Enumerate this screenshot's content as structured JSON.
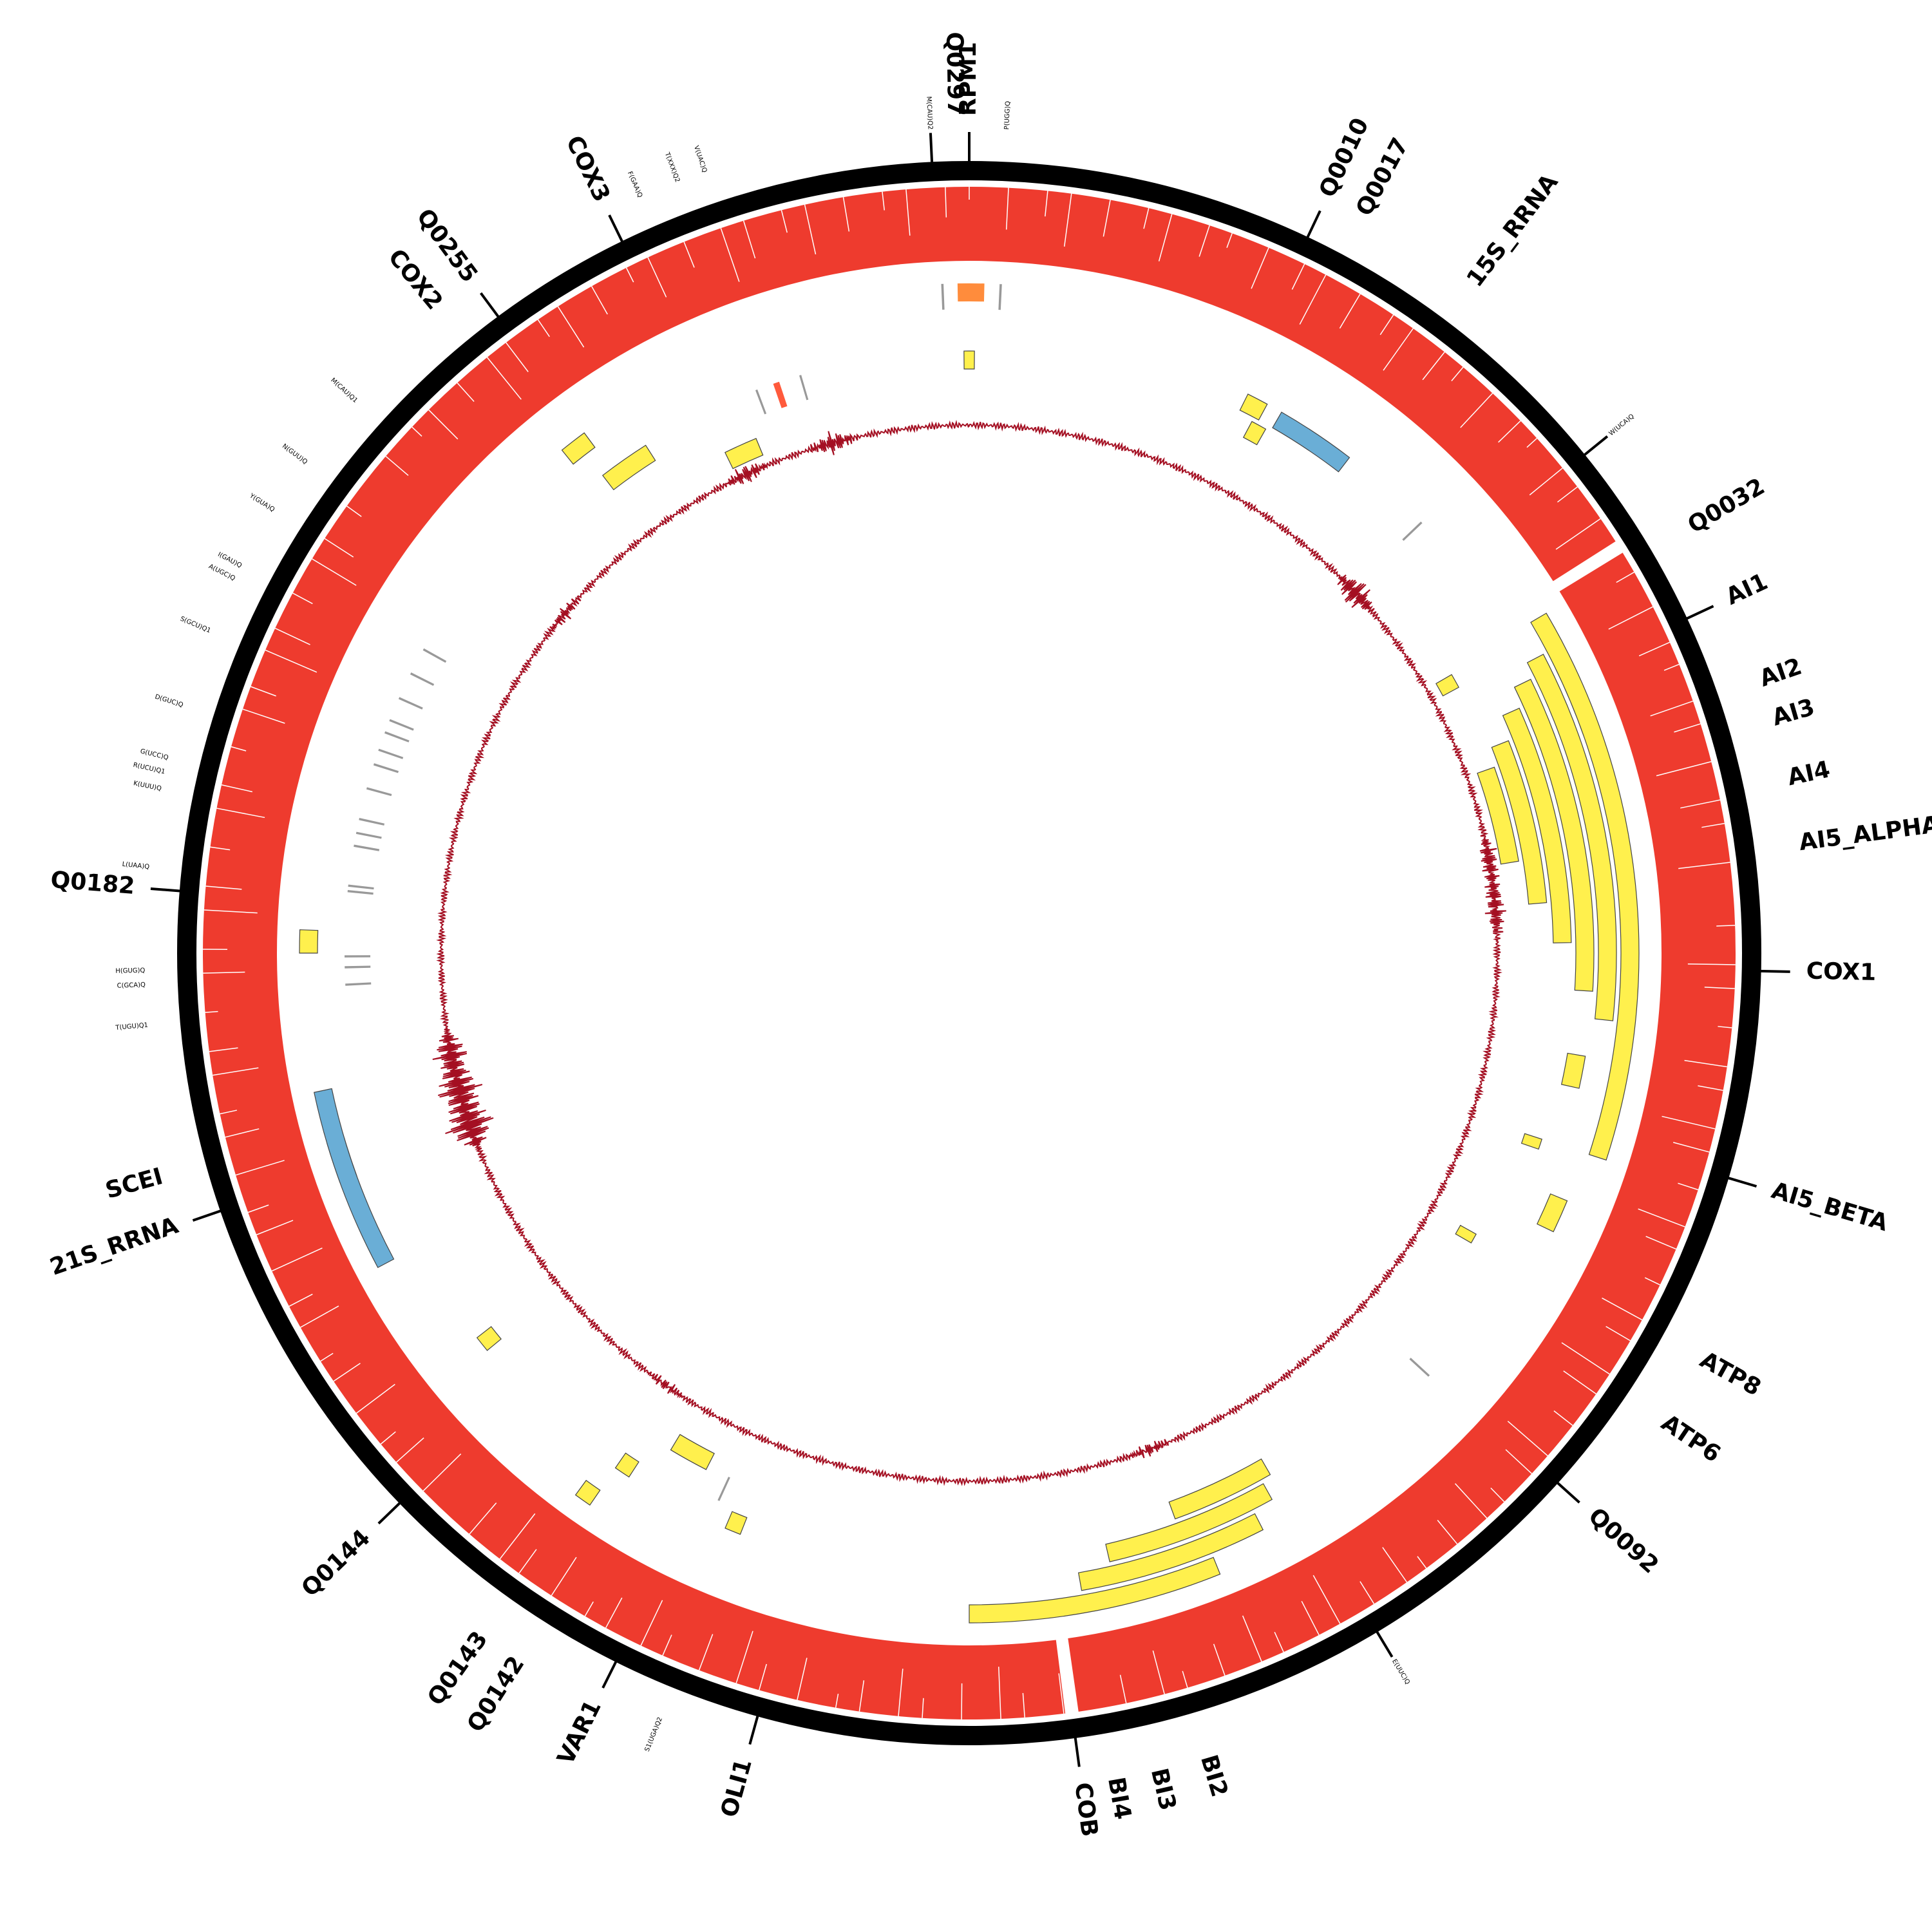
{
  "chart_data": {
    "type": "circular-genome-map",
    "rings": [
      "ideogram",
      "coverage",
      "feature-tracks",
      "gc-skew"
    ],
    "colors": {
      "ideogram": "#000000",
      "coverage": "#ee3b2e",
      "cds": "#fff04d",
      "rrna": "#6aaed6",
      "trna": "#999999",
      "orange": "#ff8c3c",
      "coral": "#ff5a3c",
      "skew": "#a40f22",
      "outline": "#444444"
    },
    "gene_labels": [
      {
        "name": "Q0297",
        "angle": -1.0,
        "size": "big"
      },
      {
        "name": "RPM1",
        "angle": 0.0,
        "size": "big"
      },
      {
        "name": "Q0010",
        "angle": 25.3,
        "size": "big"
      },
      {
        "name": "Q0017",
        "angle": 28.1,
        "size": "big"
      },
      {
        "name": "15S_RRNA",
        "angle": 37.0,
        "size": "big"
      },
      {
        "name": "Q0032",
        "angle": 59.5,
        "size": "big"
      },
      {
        "name": "AI1",
        "angle": 65.0,
        "size": "big"
      },
      {
        "name": "AI2",
        "angle": 71.0,
        "size": "big"
      },
      {
        "name": "AI3",
        "angle": 73.8,
        "size": "big"
      },
      {
        "name": "AI4",
        "angle": 78.0,
        "size": "big"
      },
      {
        "name": "AI5_ALPHA",
        "angle": 82.5,
        "size": "big"
      },
      {
        "name": "COX1",
        "angle": 91.3,
        "size": "big"
      },
      {
        "name": "AI5_BETA",
        "angle": 106.5,
        "size": "big"
      },
      {
        "name": "ATP8",
        "angle": 119.0,
        "size": "big"
      },
      {
        "name": "ATP6",
        "angle": 124.0,
        "size": "big"
      },
      {
        "name": "Q0092",
        "angle": 132.0,
        "size": "big"
      },
      {
        "name": "BI2",
        "angle": 163.5,
        "size": "big"
      },
      {
        "name": "BI3",
        "angle": 167.0,
        "size": "big"
      },
      {
        "name": "BI4",
        "angle": 170.0,
        "size": "big"
      },
      {
        "name": "COB",
        "angle": 172.3,
        "size": "big"
      },
      {
        "name": "OLI1",
        "angle": 195.5,
        "size": "big"
      },
      {
        "name": "VAR1",
        "angle": 206.5,
        "size": "big"
      },
      {
        "name": "Q0142",
        "angle": 212.5,
        "size": "big"
      },
      {
        "name": "Q0143",
        "angle": 215.5,
        "size": "big"
      },
      {
        "name": "Q0144",
        "angle": 226.0,
        "size": "big"
      },
      {
        "name": "21S_RRNA",
        "angle": 251.0,
        "size": "big"
      },
      {
        "name": "SCEI",
        "angle": 254.5,
        "size": "big"
      },
      {
        "name": "Q0182",
        "angle": 274.5,
        "size": "big"
      },
      {
        "name": "COX2",
        "angle": 320.5,
        "size": "big"
      },
      {
        "name": "Q0255",
        "angle": 323.5,
        "size": "big"
      },
      {
        "name": "COX3",
        "angle": 334.0,
        "size": "big"
      },
      {
        "name": "M(CAU)Q2",
        "angle": -2.7,
        "size": "small"
      },
      {
        "name": "P(UGG)Q",
        "angle": 2.6,
        "size": "small"
      },
      {
        "name": "W(UCA)Q",
        "angle": 51.0,
        "size": "small"
      },
      {
        "name": "E(UUC)Q",
        "angle": 149.0,
        "size": "small"
      },
      {
        "name": "S1(UGA)Q2",
        "angle": 202.0,
        "size": "small"
      },
      {
        "name": "T(UGU)Q1",
        "angle": 265.0,
        "size": "small"
      },
      {
        "name": "C(GCA)Q",
        "angle": 267.8,
        "size": "small"
      },
      {
        "name": "H(GUG)Q",
        "angle": 268.8,
        "size": "small"
      },
      {
        "name": "L(UAA)Q",
        "angle": 276.0,
        "size": "small"
      },
      {
        "name": "K(UUU)Q",
        "angle": 281.5,
        "size": "small"
      },
      {
        "name": "R(UCU)Q1",
        "angle": 282.7,
        "size": "small"
      },
      {
        "name": "G(UCC)Q",
        "angle": 283.7,
        "size": "small"
      },
      {
        "name": "D(GUC)Q",
        "angle": 287.5,
        "size": "small"
      },
      {
        "name": "S(GCU)Q1",
        "angle": 293.0,
        "size": "small"
      },
      {
        "name": "A(UGC)Q",
        "angle": 297.0,
        "size": "small"
      },
      {
        "name": "I(GAU)Q",
        "angle": 298.0,
        "size": "small"
      },
      {
        "name": "Y(GUA)Q",
        "angle": 302.5,
        "size": "small"
      },
      {
        "name": "N(GUU)Q",
        "angle": 306.5,
        "size": "small"
      },
      {
        "name": "M(CAU)Q1",
        "angle": 312.0,
        "size": "small"
      },
      {
        "name": "F(GAA)Q",
        "angle": 336.5,
        "size": "small"
      },
      {
        "name": "T(XXX)Q2",
        "angle": 339.3,
        "size": "small"
      },
      {
        "name": "V(UAC)Q",
        "angle": 341.3,
        "size": "small"
      }
    ],
    "ideogram_ticks": [
      -2.7,
      0.0,
      25.3,
      51.0,
      65.0,
      91.3,
      106.5,
      132.0,
      149.0,
      172.3,
      195.5,
      206.5,
      226.0,
      251.0,
      274.5,
      323.5,
      334.0
    ],
    "coverage_gaps": [
      58.0,
      172.3
    ],
    "feature_tracks": [
      {
        "type": "cds",
        "start": 59.5,
        "end": 108.0,
        "level": 1
      },
      {
        "type": "cds",
        "start": 62.5,
        "end": 96.0,
        "level": 2
      },
      {
        "type": "cds",
        "start": 64.0,
        "end": 93.5,
        "level": 3
      },
      {
        "type": "cds",
        "start": 66.0,
        "end": 89.0,
        "level": 4
      },
      {
        "type": "cds",
        "start": 68.5,
        "end": 85.0,
        "level": 5
      },
      {
        "type": "cds",
        "start": 70.5,
        "end": 80.5,
        "level": 6
      },
      {
        "type": "cds",
        "start": 158.0,
        "end": 180.0,
        "level": 1
      },
      {
        "type": "cds",
        "start": 153.0,
        "end": 170.0,
        "level": 2
      },
      {
        "type": "cds",
        "start": 151.0,
        "end": 167.0,
        "level": 3
      },
      {
        "type": "cds",
        "start": 150.0,
        "end": 160.0,
        "level": 4
      },
      {
        "type": "cds",
        "start": 99.5,
        "end": 102.5,
        "level": 3
      },
      {
        "type": "cds",
        "start": 112.5,
        "end": 115.5,
        "level": 2
      },
      {
        "type": "cds",
        "start": 108.0,
        "end": 109.0,
        "level": 4
      },
      {
        "type": "cds",
        "start": 119.0,
        "end": 120.0,
        "level": 5
      },
      {
        "type": "cds",
        "start": 60.0,
        "end": 61.5,
        "level": 6
      },
      {
        "type": "cds",
        "start": 28.0,
        "end": 29.5,
        "level": 4
      },
      {
        "type": "cds",
        "start": 26.5,
        "end": 28.5,
        "level": 3
      },
      {
        "type": "cds",
        "start": 359.5,
        "end": 0.5,
        "level": 4
      },
      {
        "type": "cds",
        "start": 334.0,
        "end": 337.5,
        "level": 6
      },
      {
        "type": "cds",
        "start": 322.5,
        "end": 327.5,
        "level": 4
      },
      {
        "type": "cds",
        "start": 321.0,
        "end": 323.5,
        "level": 2
      },
      {
        "type": "cds",
        "start": 270.0,
        "end": 272.0,
        "level": 1
      },
      {
        "type": "cds",
        "start": 250.0,
        "end": 253.5,
        "level": 1
      },
      {
        "type": "cds",
        "start": 230.5,
        "end": 232.0,
        "level": 3
      },
      {
        "type": "cds",
        "start": 214.5,
        "end": 216.0,
        "level": 1
      },
      {
        "type": "cds",
        "start": 213.0,
        "end": 214.5,
        "level": 3
      },
      {
        "type": "cds",
        "start": 207.0,
        "end": 211.0,
        "level": 5
      },
      {
        "type": "cds",
        "start": 201.5,
        "end": 203.0,
        "level": 3
      },
      {
        "type": "rrna",
        "start": 30.0,
        "end": 37.5,
        "level": 3
      },
      {
        "type": "rrna",
        "start": 242.0,
        "end": 258.0,
        "level": 1
      },
      {
        "type": "orange",
        "start": 359.0,
        "end": 1.3,
        "level": 1
      },
      {
        "type": "coral",
        "start": 341.0,
        "end": 341.6,
        "level": 4
      },
      {
        "type": "trna",
        "start": 357.6,
        "end": 357.8,
        "level": 1
      },
      {
        "type": "trna",
        "start": 2.6,
        "end": 2.8,
        "level": 1
      },
      {
        "type": "trna",
        "start": 339.2,
        "end": 339.4,
        "level": 4
      },
      {
        "type": "trna",
        "start": 343.6,
        "end": 343.8,
        "level": 4
      },
      {
        "type": "trna",
        "start": 46.3,
        "end": 46.5,
        "level": 3
      },
      {
        "type": "trna",
        "start": 299.0,
        "end": 299.2,
        "level": 3
      },
      {
        "type": "trna",
        "start": 296.5,
        "end": 296.7,
        "level": 3
      },
      {
        "type": "trna",
        "start": 294.0,
        "end": 294.2,
        "level": 3
      },
      {
        "type": "trna",
        "start": 291.8,
        "end": 292.0,
        "level": 3
      },
      {
        "type": "trna",
        "start": 290.6,
        "end": 290.8,
        "level": 3
      },
      {
        "type": "trna",
        "start": 287.5,
        "end": 287.7,
        "level": 3
      },
      {
        "type": "trna",
        "start": 288.9,
        "end": 289.1,
        "level": 3
      },
      {
        "type": "trna",
        "start": 285.2,
        "end": 285.4,
        "level": 3
      },
      {
        "type": "trna",
        "start": 282.3,
        "end": 282.5,
        "level": 3
      },
      {
        "type": "trna",
        "start": 281.0,
        "end": 281.2,
        "level": 3
      },
      {
        "type": "trna",
        "start": 279.8,
        "end": 280.0,
        "level": 3
      },
      {
        "type": "trna",
        "start": 276.1,
        "end": 276.3,
        "level": 3
      },
      {
        "type": "trna",
        "start": 275.6,
        "end": 275.8,
        "level": 3
      },
      {
        "type": "trna",
        "start": 269.6,
        "end": 269.8,
        "level": 3
      },
      {
        "type": "trna",
        "start": 268.6,
        "end": 268.8,
        "level": 3
      },
      {
        "type": "trna",
        "start": 267.0,
        "end": 267.2,
        "level": 3
      },
      {
        "type": "trna",
        "start": 132.5,
        "end": 132.7,
        "level": 3
      },
      {
        "type": "trna",
        "start": 204.5,
        "end": 204.7,
        "level": 4
      }
    ],
    "gc_skew": {
      "spikes": [
        {
          "angle": 47.0,
          "amp": 25
        },
        {
          "angle": 79.5,
          "amp": 15
        },
        {
          "angle": 83.0,
          "amp": 12
        },
        {
          "angle": 86.0,
          "amp": 15
        },
        {
          "angle": 255.0,
          "amp": 40
        },
        {
          "angle": 251.0,
          "amp": 45
        },
        {
          "angle": 259.0,
          "amp": 30
        },
        {
          "angle": 335.0,
          "amp": 15
        },
        {
          "angle": 345.0,
          "amp": 18
        },
        {
          "angle": 310.0,
          "amp": 10
        },
        {
          "angle": 160.0,
          "amp": 10
        },
        {
          "angle": 215.0,
          "amp": 8
        }
      ]
    }
  }
}
